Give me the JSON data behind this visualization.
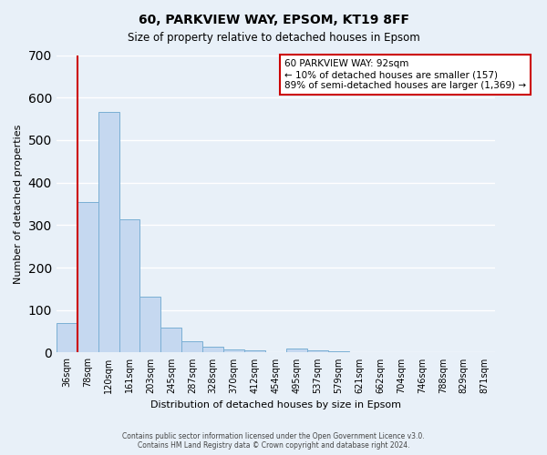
{
  "title1": "60, PARKVIEW WAY, EPSOM, KT19 8FF",
  "title2": "Size of property relative to detached houses in Epsom",
  "xlabel": "Distribution of detached houses by size in Epsom",
  "ylabel": "Number of detached properties",
  "bar_labels": [
    "36sqm",
    "78sqm",
    "120sqm",
    "161sqm",
    "203sqm",
    "245sqm",
    "287sqm",
    "328sqm",
    "370sqm",
    "412sqm",
    "454sqm",
    "495sqm",
    "537sqm",
    "579sqm",
    "621sqm",
    "662sqm",
    "704sqm",
    "746sqm",
    "788sqm",
    "829sqm",
    "871sqm"
  ],
  "bar_values": [
    70,
    355,
    567,
    313,
    132,
    58,
    27,
    14,
    7,
    5,
    0,
    10,
    5,
    3,
    0,
    0,
    0,
    0,
    0,
    0,
    0
  ],
  "bar_color": "#c5d8f0",
  "bar_edge_color": "#7aafd4",
  "ylim": [
    0,
    700
  ],
  "yticks": [
    0,
    100,
    200,
    300,
    400,
    500,
    600,
    700
  ],
  "vline_color": "#cc0000",
  "annotation_lines": [
    "60 PARKVIEW WAY: 92sqm",
    "← 10% of detached houses are smaller (157)",
    "89% of semi-detached houses are larger (1,369) →"
  ],
  "annotation_box_color": "#ffffff",
  "annotation_box_edge": "#cc0000",
  "footer1": "Contains HM Land Registry data © Crown copyright and database right 2024.",
  "footer2": "Contains public sector information licensed under the Open Government Licence v3.0.",
  "background_color": "#e8f0f8",
  "plot_bg_color": "#e8f0f8",
  "grid_color": "#ffffff"
}
